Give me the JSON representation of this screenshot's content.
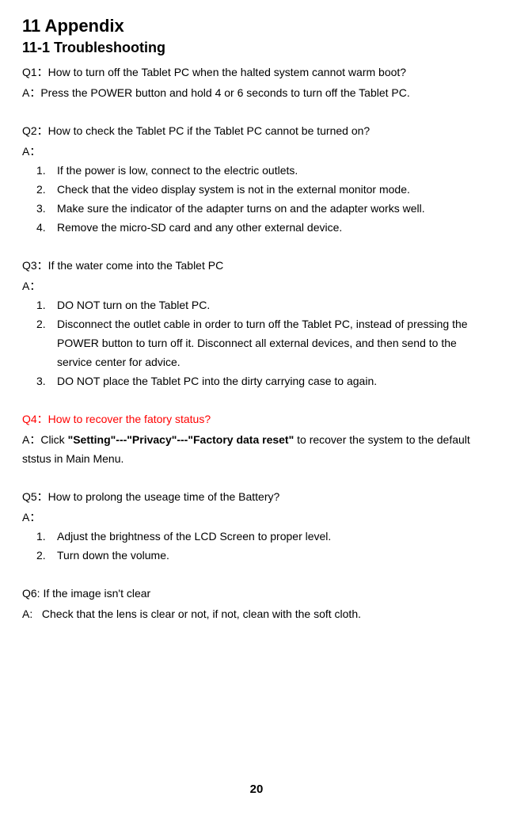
{
  "page": {
    "h1": "11 Appendix",
    "h2": "11-1 Troubleshooting",
    "pageNumber": "20"
  },
  "q1": {
    "q": "Q1：How to turn off the Tablet PC when the halted system cannot warm boot?",
    "a": "A：Press the POWER button and hold 4 or 6 seconds to turn off the Tablet PC."
  },
  "q2": {
    "q": "Q2：How to check the Tablet PC if the Tablet PC cannot be turned on?",
    "aLabel": "A：",
    "items": [
      "If the power is low, connect to the electric outlets.",
      "Check that the video display system is not in the external monitor mode.",
      "Make sure the indicator of the adapter turns on and the adapter works well.",
      "Remove the micro-SD card and any other external device."
    ]
  },
  "q3": {
    "q": "Q3：If the water come into the Tablet PC",
    "aLabel": "A：",
    "items": [
      "DO NOT turn on the Tablet PC.",
      "Disconnect the outlet cable in order to turn off the Tablet PC, instead of pressing the POWER button to turn off it. Disconnect all external devices, and then send to the service center for advice.",
      "DO NOT place the Tablet PC into the dirty carrying case to again."
    ]
  },
  "q4": {
    "q": "Q4：How to recover the fatory status?",
    "aPrefix": "A：Click ",
    "aBold": "\"Setting\"---\"Privacy\"---\"Factory data reset\"",
    "aSuffix": " to recover the system to the default ststus in Main Menu."
  },
  "q5": {
    "q": "Q5：How to prolong the useage time of the Battery?",
    "aLabel": "A：",
    "items": [
      "Adjust the brightness of the LCD Screen to proper level.",
      "Turn down the volume."
    ]
  },
  "q6": {
    "q": "Q6: If the image isn't clear",
    "a": "A:   Check that the lens is clear or not, if not, clean with the soft cloth."
  }
}
